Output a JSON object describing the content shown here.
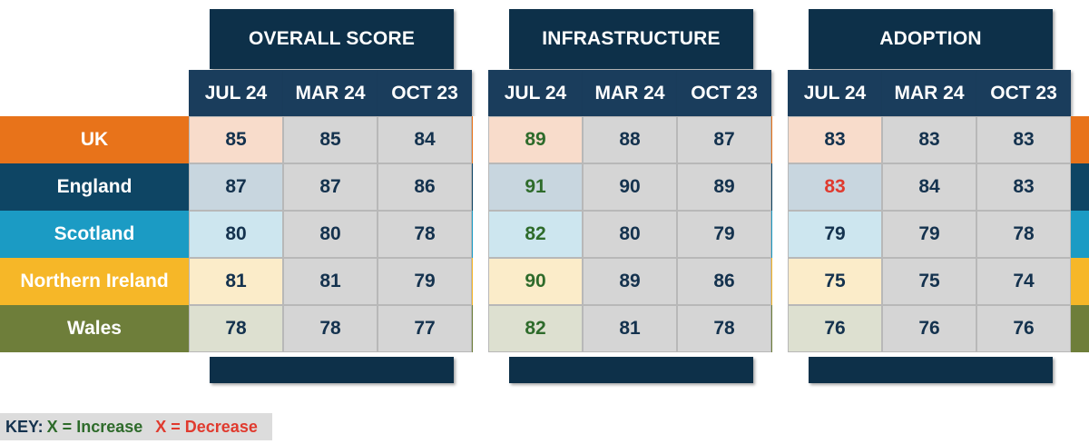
{
  "groups": [
    "OVERALL SCORE",
    "INFRASTRUCTURE",
    "ADOPTION"
  ],
  "periods": [
    "JUL 24",
    "MAR 24",
    "OCT 23"
  ],
  "colors": {
    "header_dark": "#0d3049",
    "subheader": "#1a3d5c",
    "cell_grey": "#d5d5d5",
    "text_navy": "#14324e",
    "increase": "#2e6b2b",
    "decrease": "#e03a2e"
  },
  "rows": [
    {
      "label": "UK",
      "color": "#e8731a",
      "tint": "#f8dccb"
    },
    {
      "label": "England",
      "color": "#0e4564",
      "tint": "#c8d6df"
    },
    {
      "label": "Scotland",
      "color": "#1b9bc4",
      "tint": "#cde6ef"
    },
    {
      "label": "Northern Ireland",
      "color": "#f6b728",
      "tint": "#fbecc9"
    },
    {
      "label": "Wales",
      "color": "#6e7e3a",
      "tint": "#dde0d0"
    }
  ],
  "chart_data": {
    "type": "table",
    "columns": [
      "OVERALL SCORE JUL 24",
      "OVERALL SCORE MAR 24",
      "OVERALL SCORE OCT 23",
      "INFRASTRUCTURE JUL 24",
      "INFRASTRUCTURE MAR 24",
      "INFRASTRUCTURE OCT 23",
      "ADOPTION JUL 24",
      "ADOPTION MAR 24",
      "ADOPTION OCT 23"
    ],
    "values": [
      [
        85,
        85,
        84,
        89,
        88,
        87,
        83,
        83,
        83
      ],
      [
        87,
        87,
        86,
        91,
        90,
        89,
        83,
        84,
        83
      ],
      [
        80,
        80,
        78,
        82,
        80,
        79,
        79,
        79,
        78
      ],
      [
        81,
        81,
        79,
        90,
        89,
        86,
        75,
        75,
        74
      ],
      [
        78,
        78,
        77,
        82,
        81,
        78,
        76,
        76,
        76
      ]
    ],
    "trend": [
      [
        "none",
        "none",
        "none",
        "increase",
        "none",
        "none",
        "none",
        "none",
        "none"
      ],
      [
        "none",
        "none",
        "none",
        "increase",
        "none",
        "none",
        "decrease",
        "none",
        "none"
      ],
      [
        "none",
        "none",
        "none",
        "increase",
        "none",
        "none",
        "none",
        "none",
        "none"
      ],
      [
        "none",
        "none",
        "none",
        "increase",
        "none",
        "none",
        "none",
        "none",
        "none"
      ],
      [
        "none",
        "none",
        "none",
        "increase",
        "none",
        "none",
        "none",
        "none",
        "none"
      ]
    ]
  },
  "key": {
    "label": "KEY:",
    "increase": "X = Increase",
    "decrease": "X = Decrease"
  }
}
